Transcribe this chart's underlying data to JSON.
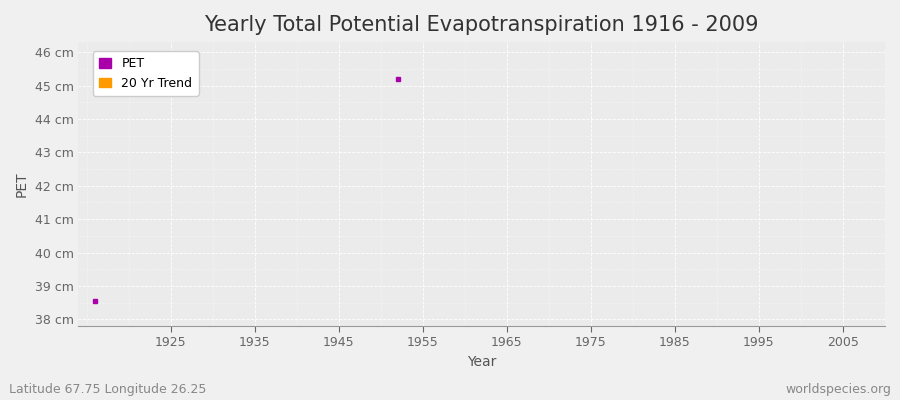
{
  "title": "Yearly Total Potential Evapotranspiration 1916 - 2009",
  "xlabel": "Year",
  "ylabel": "PET",
  "xlim": [
    1914,
    2010
  ],
  "ylim": [
    37.8,
    46.3
  ],
  "yticks": [
    38,
    39,
    40,
    41,
    42,
    43,
    44,
    45,
    46
  ],
  "ytick_labels": [
    "38 cm",
    "39 cm",
    "40 cm",
    "41 cm",
    "42 cm",
    "43 cm",
    "44 cm",
    "45 cm",
    "46 cm"
  ],
  "xticks": [
    1925,
    1935,
    1945,
    1955,
    1965,
    1975,
    1985,
    1995,
    2005
  ],
  "pet_points": [
    [
      1916,
      38.55
    ],
    [
      1952,
      45.2
    ]
  ],
  "pet_color": "#aa00aa",
  "trend_color": "#ff9900",
  "bg_color": "#f0f0f0",
  "plot_bg_color": "#ebebeb",
  "grid_color": "#ffffff",
  "legend_labels": [
    "PET",
    "20 Yr Trend"
  ],
  "footnote_left": "Latitude 67.75 Longitude 26.25",
  "footnote_right": "worldspecies.org",
  "title_fontsize": 15,
  "axis_label_fontsize": 10,
  "tick_fontsize": 9,
  "footnote_fontsize": 9
}
